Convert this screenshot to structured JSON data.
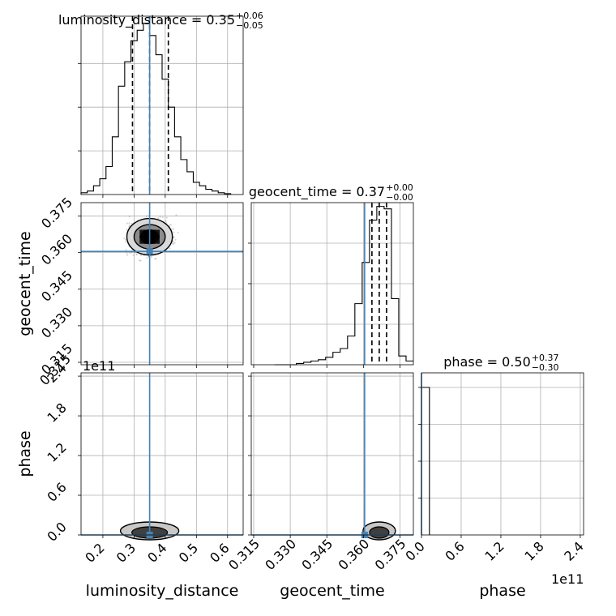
{
  "chart_data": {
    "type": "corner",
    "parameters": [
      "luminosity_distance",
      "geocent_time",
      "phase"
    ],
    "axis_labels": {
      "luminosity_distance": "luminosity_distance",
      "geocent_time": "geocent_time",
      "phase": "phase"
    },
    "titles": {
      "luminosity_distance": {
        "text": "luminosity_distance = 0.35",
        "plus": "+0.06",
        "minus": "−0.05"
      },
      "geocent_time": {
        "text": "geocent_time = 0.37",
        "plus": "+0.00",
        "minus": "−0.00"
      },
      "phase": {
        "text": "phase = 0.50",
        "plus": "+0.37",
        "minus": "−0.30"
      }
    },
    "offset_text": {
      "phase_y": "1e11",
      "phase_x": "1e11",
      "overlap_tick": "0.315"
    },
    "ranges": {
      "luminosity_distance": [
        0.13,
        0.65
      ],
      "geocent_time": [
        0.314,
        0.3805
      ],
      "phase": [
        0,
        2.45
      ]
    },
    "ticks": {
      "luminosity_distance": [
        "0.2",
        "0.3",
        "0.4",
        "0.5",
        "0.6"
      ],
      "luminosity_distance_values": [
        0.2,
        0.3,
        0.4,
        0.5,
        0.6
      ],
      "geocent_time": [
        "0.315",
        "0.330",
        "0.345",
        "0.360",
        "0.375"
      ],
      "geocent_time_values": [
        0.315,
        0.33,
        0.345,
        0.36,
        0.375
      ],
      "geocent_time_y": [
        "0.315",
        "0.330",
        "0.345",
        "0.360",
        "0.375"
      ],
      "geocent_time_y_values": [
        0.315,
        0.33,
        0.345,
        0.36,
        0.375
      ],
      "phase": [
        "0.0",
        "0.6",
        "1.2",
        "1.8",
        "2.4"
      ],
      "phase_values": [
        0,
        0.6,
        1.2,
        1.8,
        2.4
      ]
    },
    "truths": {
      "luminosity_distance": 0.35,
      "geocent_time": 0.3605,
      "phase": 0
    },
    "quantiles": {
      "luminosity_distance": [
        0.295,
        0.35,
        0.41
      ],
      "geocent_time": [
        0.3635,
        0.3665,
        0.3695
      ]
    },
    "histograms": {
      "luminosity_distance": {
        "edges": [
          0.13,
          0.15,
          0.17,
          0.19,
          0.21,
          0.23,
          0.25,
          0.27,
          0.29,
          0.31,
          0.33,
          0.35,
          0.37,
          0.39,
          0.41,
          0.43,
          0.45,
          0.47,
          0.49,
          0.51,
          0.53,
          0.55,
          0.57,
          0.59,
          0.61
        ],
        "counts": [
          1,
          2,
          5,
          9,
          16,
          33,
          62,
          76,
          88,
          94,
          98,
          91,
          80,
          66,
          50,
          33,
          20,
          13,
          7,
          5,
          3,
          2,
          1,
          0.5
        ]
      },
      "geocent_time": {
        "edges": [
          0.3235,
          0.3265,
          0.3295,
          0.3325,
          0.3355,
          0.3385,
          0.3415,
          0.3445,
          0.3475,
          0.3505,
          0.3535,
          0.3565,
          0.3595,
          0.3625,
          0.3655,
          0.3685,
          0.3715,
          0.3745,
          0.3775,
          0.3805
        ],
        "counts": [
          0,
          0,
          0,
          0.1,
          0.2,
          0.3,
          0.4,
          0.6,
          1,
          1.3,
          2.3,
          4.9,
          8.2,
          11.6,
          12.7,
          12.5,
          5.3,
          0.7,
          0.3
        ]
      },
      "phase": {
        "edges": [
          0,
          0.12
        ],
        "counts": [
          1
        ]
      }
    },
    "contour_ellipses": [
      {
        "cx": 0.35,
        "cy": 0.3665,
        "rx": 0.028,
        "ry": 0.0028
      },
      {
        "cx": 0.35,
        "cy": 0.3665,
        "rx": 0.05,
        "ry": 0.005
      },
      {
        "cx": 0.35,
        "cy": 0.3665,
        "rx": 0.073,
        "ry": 0.0075
      }
    ],
    "grid": true
  }
}
